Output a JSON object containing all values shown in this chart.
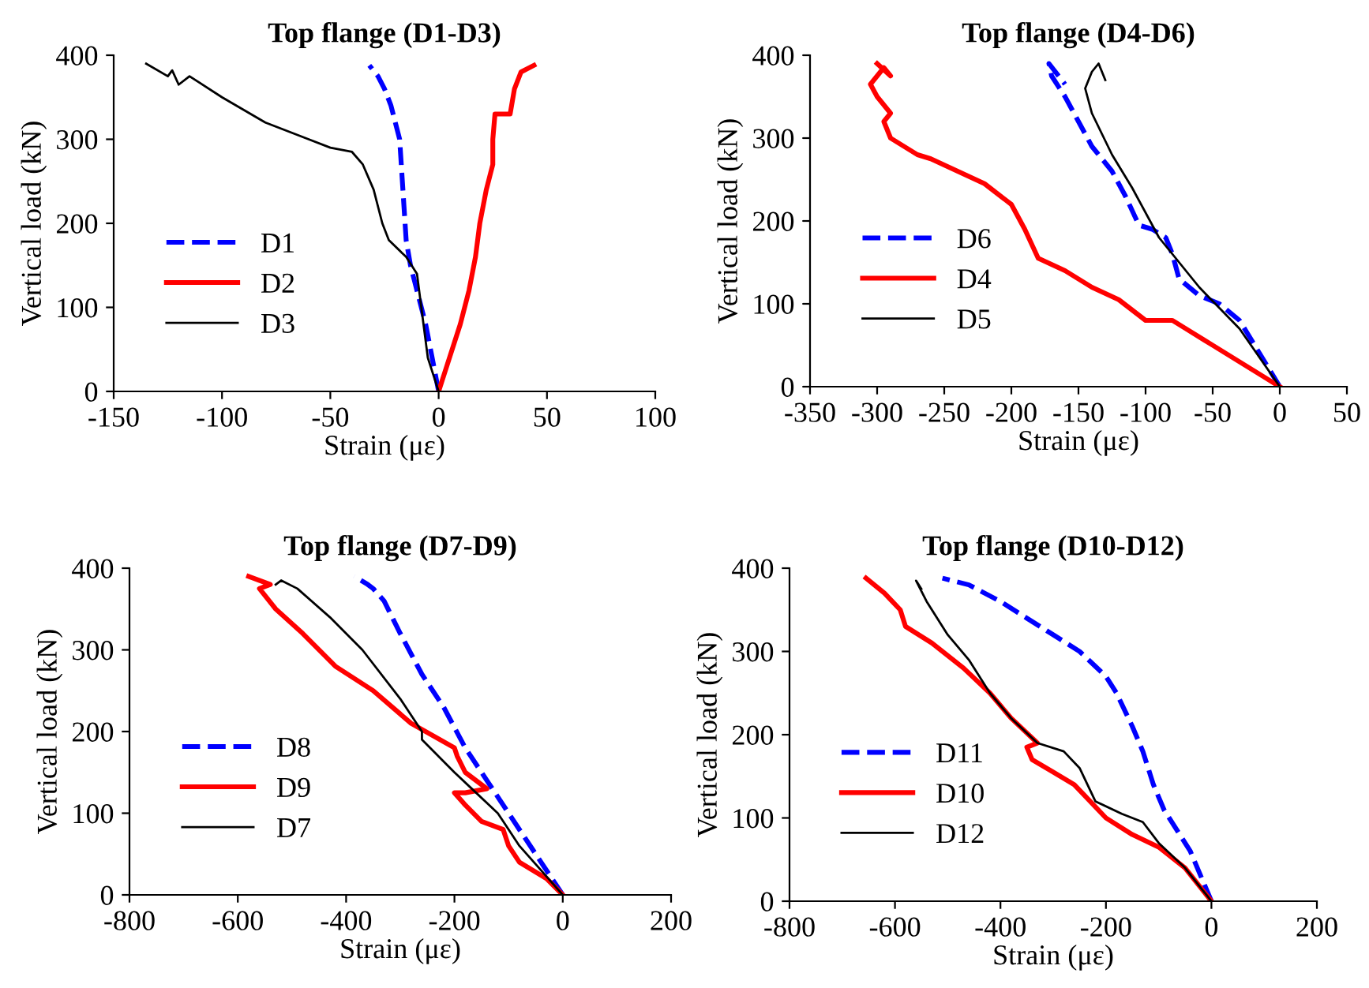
{
  "chart_data": [
    {
      "type": "line",
      "title": "Top flange (D1-D3)",
      "xlabel": "Strain (με)",
      "ylabel": "Vertical load (kN)",
      "xlim": [
        -150,
        100
      ],
      "xticks": [
        -150,
        -100,
        -50,
        0,
        50,
        100
      ],
      "ylim": [
        0,
        400
      ],
      "yticks": [
        0,
        100,
        200,
        300,
        400
      ],
      "grid": false,
      "legend": "lower left",
      "marker": "none",
      "series": [
        {
          "name": "D1",
          "color": "#0000ff",
          "line_style": "dashed",
          "x": [
            0,
            -3,
            -6,
            -9,
            -11,
            -13,
            -15,
            -16,
            -17,
            -18,
            -20,
            -22,
            -25,
            -28,
            -32
          ],
          "values": [
            0,
            40,
            80,
            110,
            130,
            150,
            180,
            220,
            260,
            300,
            320,
            340,
            360,
            375,
            388
          ]
        },
        {
          "name": "D2",
          "color": "#ff0000",
          "line_style": "solid",
          "x": [
            0,
            5,
            10,
            14,
            17,
            19,
            22,
            24,
            25,
            25,
            26,
            33,
            35,
            38,
            44
          ],
          "values": [
            0,
            40,
            80,
            120,
            160,
            200,
            240,
            260,
            270,
            300,
            330,
            330,
            360,
            380,
            388
          ]
        },
        {
          "name": "D3",
          "color": "#000000",
          "line_style": "solid",
          "x": [
            0,
            -5,
            -7,
            -8,
            -10,
            -15,
            -23,
            -26,
            -30,
            -35,
            -40,
            -50,
            -60,
            -80,
            -100,
            -115,
            -120,
            -123,
            -125,
            -135
          ],
          "values": [
            0,
            40,
            80,
            100,
            140,
            160,
            180,
            200,
            240,
            270,
            285,
            290,
            300,
            320,
            350,
            375,
            365,
            382,
            375,
            390
          ]
        }
      ]
    },
    {
      "type": "line",
      "title": "Top flange (D4-D6)",
      "xlabel": "Strain (με)",
      "ylabel": "Vertical load (kN)",
      "xlim": [
        -350,
        50
      ],
      "xticks": [
        -350,
        -300,
        -250,
        -200,
        -150,
        -100,
        -50,
        0,
        50
      ],
      "ylim": [
        0,
        400
      ],
      "yticks": [
        0,
        100,
        200,
        300,
        400
      ],
      "grid": false,
      "legend": "lower left",
      "marker": "none",
      "series": [
        {
          "name": "D6",
          "color": "#0000ff",
          "line_style": "dashed",
          "x": [
            0,
            -15,
            -30,
            -45,
            -60,
            -75,
            -80,
            -85,
            -95,
            -105,
            -115,
            -125,
            -140,
            -150,
            -160,
            -170,
            -172,
            -160
          ],
          "values": [
            0,
            40,
            80,
            100,
            110,
            130,
            160,
            180,
            190,
            195,
            230,
            260,
            290,
            320,
            350,
            375,
            390,
            365
          ]
        },
        {
          "name": "D4",
          "color": "#ff0000",
          "line_style": "solid",
          "x": [
            0,
            -10,
            -30,
            -50,
            -70,
            -80,
            -100,
            -120,
            -140,
            -160,
            -180,
            -190,
            -200,
            -220,
            -240,
            -260,
            -270,
            -290,
            -295,
            -290,
            -300,
            -305,
            -295,
            -290,
            -300
          ],
          "values": [
            0,
            10,
            30,
            50,
            70,
            80,
            80,
            105,
            120,
            140,
            155,
            190,
            220,
            245,
            260,
            275,
            280,
            300,
            320,
            330,
            350,
            365,
            385,
            375,
            390
          ]
        },
        {
          "name": "D5",
          "color": "#000000",
          "line_style": "solid",
          "x": [
            0,
            -30,
            -60,
            -90,
            -110,
            -125,
            -140,
            -145,
            -140,
            -135,
            -130
          ],
          "values": [
            0,
            70,
            120,
            180,
            240,
            280,
            330,
            360,
            380,
            390,
            370
          ]
        }
      ]
    },
    {
      "type": "line",
      "title": "Top flange (D7-D9)",
      "xlabel": "Strain (με)",
      "ylabel": "Vertical load (kN)",
      "xlim": [
        -800,
        200
      ],
      "xticks": [
        -800,
        -600,
        -400,
        -200,
        0,
        200
      ],
      "ylim": [
        0,
        400
      ],
      "yticks": [
        0,
        100,
        200,
        300,
        400
      ],
      "grid": false,
      "legend": "lower left",
      "marker": "none",
      "series": [
        {
          "name": "D8",
          "color": "#0000ff",
          "line_style": "dashed",
          "x": [
            0,
            -40,
            -80,
            -110,
            -140,
            -180,
            -220,
            -260,
            -300,
            -330,
            -350,
            -360,
            -385
          ],
          "values": [
            0,
            40,
            80,
            110,
            140,
            180,
            230,
            270,
            320,
            360,
            375,
            380,
            390
          ]
        },
        {
          "name": "D9",
          "color": "#ff0000",
          "line_style": "solid",
          "x": [
            0,
            -30,
            -80,
            -100,
            -110,
            -150,
            -180,
            -200,
            -180,
            -140,
            -180,
            -195,
            -200,
            -240,
            -280,
            -350,
            -420,
            -480,
            -530,
            -560,
            -540,
            -580
          ],
          "values": [
            0,
            20,
            40,
            60,
            80,
            90,
            110,
            125,
            125,
            130,
            150,
            170,
            180,
            195,
            210,
            250,
            280,
            320,
            350,
            375,
            380,
            390
          ]
        },
        {
          "name": "D7",
          "color": "#000000",
          "line_style": "solid",
          "x": [
            0,
            -40,
            -80,
            -110,
            -120,
            -160,
            -200,
            -260,
            -260,
            -300,
            -370,
            -430,
            -490,
            -520,
            -530
          ],
          "values": [
            0,
            30,
            60,
            90,
            100,
            125,
            150,
            190,
            200,
            240,
            300,
            340,
            375,
            385,
            380
          ]
        }
      ]
    },
    {
      "type": "line",
      "title": "Top flange (D10-D12)",
      "xlabel": "Strain (με)",
      "ylabel": "Vertical load (kN)",
      "xlim": [
        -800,
        200
      ],
      "xticks": [
        -800,
        -600,
        -400,
        -200,
        0,
        200
      ],
      "ylim": [
        0,
        400
      ],
      "yticks": [
        0,
        100,
        200,
        300,
        400
      ],
      "grid": false,
      "legend": "lower left",
      "marker": "none",
      "series": [
        {
          "name": "D11",
          "color": "#0000ff",
          "line_style": "dashed",
          "x": [
            0,
            -20,
            -40,
            -60,
            -90,
            -110,
            -130,
            -150,
            -180,
            -200,
            -250,
            -300,
            -350,
            -400,
            -460,
            -510
          ],
          "values": [
            0,
            30,
            60,
            80,
            110,
            140,
            180,
            210,
            250,
            270,
            300,
            320,
            340,
            360,
            380,
            388
          ]
        },
        {
          "name": "D10",
          "color": "#ff0000",
          "line_style": "solid",
          "x": [
            0,
            -50,
            -100,
            -150,
            -200,
            -230,
            -260,
            -300,
            -340,
            -350,
            -330,
            -380,
            -420,
            -470,
            -530,
            -580,
            -590,
            -620,
            -655
          ],
          "values": [
            0,
            40,
            65,
            80,
            100,
            120,
            140,
            155,
            170,
            185,
            190,
            220,
            250,
            280,
            310,
            330,
            350,
            370,
            388
          ]
        },
        {
          "name": "D12",
          "color": "#000000",
          "line_style": "solid",
          "x": [
            0,
            -50,
            -100,
            -130,
            -170,
            -220,
            -250,
            -280,
            -330,
            -380,
            -420,
            -460,
            -500,
            -540,
            -560,
            -550
          ],
          "values": [
            0,
            40,
            70,
            95,
            105,
            120,
            160,
            180,
            190,
            220,
            250,
            290,
            320,
            360,
            385,
            375
          ]
        }
      ]
    }
  ]
}
